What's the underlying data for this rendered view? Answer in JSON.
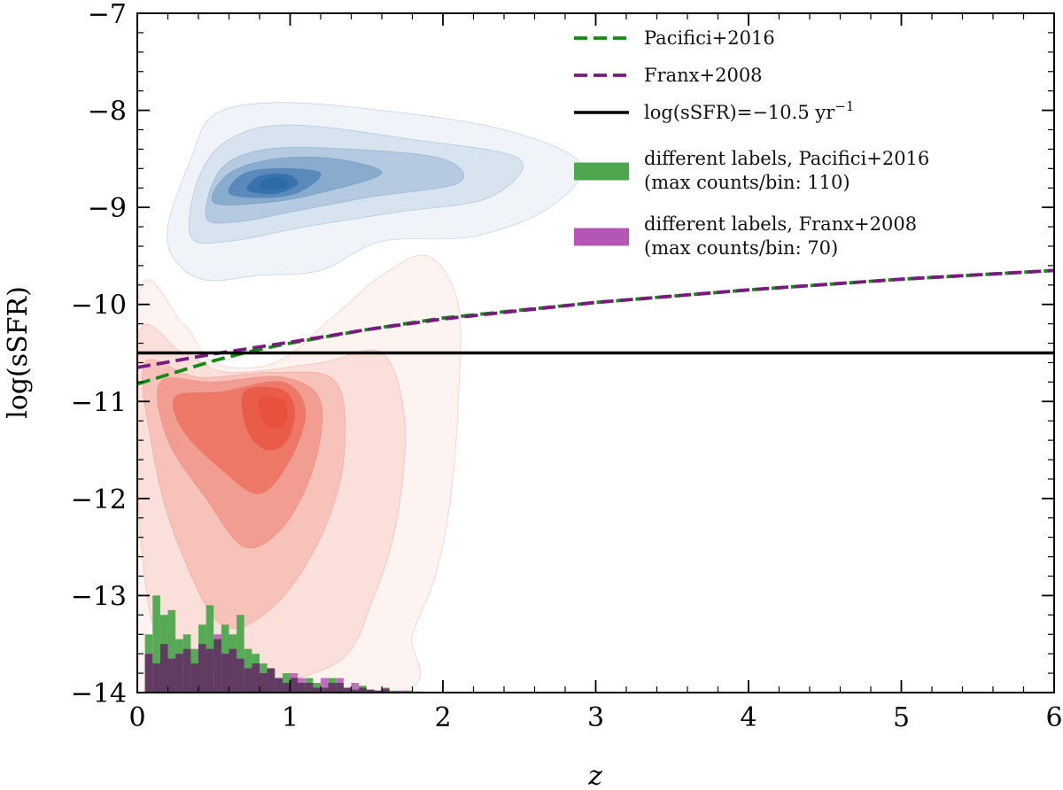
{
  "chart_data": {
    "type": "density-contour-with-histograms",
    "xlabel": "z",
    "ylabel": "log(sSFR)",
    "xlim": [
      0,
      6
    ],
    "ylim": [
      -14,
      -7
    ],
    "x_ticks": [
      0,
      1,
      2,
      3,
      4,
      5,
      6
    ],
    "x_tick_labels": [
      "0",
      "1",
      "2",
      "3",
      "4",
      "5",
      "6"
    ],
    "y_ticks": [
      -14,
      -13,
      -12,
      -11,
      -10,
      -9,
      -8,
      -7
    ],
    "y_tick_labels": [
      "−14",
      "−13",
      "−12",
      "−11",
      "−10",
      "−9",
      "−8",
      "−7"
    ],
    "colors": {
      "pacifici": "#138a13",
      "franx": "#7a1a80",
      "threshold": "#000000",
      "hist_green": "#4ea64e",
      "hist_purple": "#b457b4",
      "hist_overlap": "#5c3a5e",
      "star_forming": "#2b6aa8",
      "quiescent": "#e8503a"
    },
    "series": [
      {
        "name": "Pacifici+2016",
        "kind": "dashed-line",
        "x": [
          0,
          0.25,
          0.5,
          0.75,
          1,
          1.5,
          2,
          3,
          4,
          5,
          6
        ],
        "y": [
          -10.82,
          -10.7,
          -10.58,
          -10.48,
          -10.4,
          -10.26,
          -10.14,
          -9.98,
          -9.85,
          -9.74,
          -9.65
        ]
      },
      {
        "name": "Franx+2008",
        "kind": "dashed-line",
        "x": [
          0,
          0.25,
          0.5,
          0.75,
          1,
          1.5,
          2,
          3,
          4,
          5,
          6
        ],
        "y": [
          -10.65,
          -10.58,
          -10.51,
          -10.45,
          -10.39,
          -10.26,
          -10.15,
          -9.98,
          -9.85,
          -9.74,
          -9.65
        ]
      },
      {
        "name": "log(sSFR)=−10.5 yr−1",
        "kind": "horizontal-line",
        "y": -10.5
      }
    ],
    "histograms": [
      {
        "name": "different labels, Pacifici+2016",
        "note": "(max counts/bin: 110)",
        "bin_width": 0.05,
        "baseline": -14,
        "bin_starts": [
          0.05,
          0.1,
          0.15,
          0.2,
          0.25,
          0.3,
          0.35,
          0.4,
          0.45,
          0.5,
          0.55,
          0.6,
          0.65,
          0.7,
          0.75,
          0.8,
          0.85,
          0.9,
          0.95,
          1.0,
          1.05,
          1.1,
          1.15,
          1.2,
          1.25,
          1.3,
          1.35,
          1.4,
          1.45,
          1.5,
          1.55,
          1.6,
          1.65,
          1.7,
          1.75,
          1.8,
          1.85,
          1.9
        ],
        "tops": [
          -13.4,
          -13.0,
          -13.2,
          -13.15,
          -13.45,
          -13.4,
          -13.55,
          -13.3,
          -13.1,
          -13.45,
          -13.3,
          -13.4,
          -13.2,
          -13.55,
          -13.6,
          -13.7,
          -13.75,
          -13.85,
          -13.8,
          -13.85,
          -13.9,
          -13.85,
          -13.9,
          -13.95,
          -13.85,
          -13.9,
          -13.95,
          -13.97,
          -13.93,
          -13.97,
          -13.98,
          -13.95,
          -13.98,
          -13.99,
          -13.98,
          -13.99,
          -13.99,
          -13.995
        ]
      },
      {
        "name": "different labels, Franx+2008",
        "note": "(max counts/bin: 70)",
        "bin_width": 0.05,
        "baseline": -14,
        "bin_starts": [
          0.05,
          0.1,
          0.15,
          0.2,
          0.25,
          0.3,
          0.35,
          0.4,
          0.45,
          0.5,
          0.55,
          0.6,
          0.65,
          0.7,
          0.75,
          0.8,
          0.85,
          0.9,
          0.95,
          1.0,
          1.05,
          1.1,
          1.15,
          1.2,
          1.25,
          1.3,
          1.35,
          1.4,
          1.45,
          1.5,
          1.55,
          1.6,
          1.65,
          1.7,
          1.75,
          1.8,
          1.85,
          1.9
        ],
        "tops": [
          -13.6,
          -13.7,
          -13.5,
          -13.65,
          -13.6,
          -13.55,
          -13.7,
          -13.5,
          -13.55,
          -13.4,
          -13.6,
          -13.55,
          -13.65,
          -13.75,
          -13.7,
          -13.8,
          -13.75,
          -13.85,
          -13.9,
          -13.8,
          -13.85,
          -13.9,
          -13.95,
          -13.85,
          -13.9,
          -13.85,
          -13.95,
          -13.9,
          -13.95,
          -13.97,
          -13.98,
          -13.96,
          -13.99,
          -13.98,
          -13.99,
          -13.99,
          -13.995,
          -13.995
        ]
      }
    ],
    "density_regions": [
      {
        "name": "star-forming",
        "peak": {
          "x": 0.9,
          "y": -8.75
        },
        "levels": [
          {
            "opacity": 0.07,
            "points": [
              [
                0.25,
                -9.55
              ],
              [
                0.2,
                -9.2
              ],
              [
                0.35,
                -8.5
              ],
              [
                0.5,
                -8.05
              ],
              [
                0.9,
                -7.92
              ],
              [
                1.6,
                -8.0
              ],
              [
                2.4,
                -8.2
              ],
              [
                2.9,
                -8.55
              ],
              [
                2.7,
                -9.0
              ],
              [
                2.2,
                -9.3
              ],
              [
                1.6,
                -9.35
              ],
              [
                1.2,
                -9.65
              ],
              [
                0.8,
                -9.7
              ],
              [
                0.45,
                -9.75
              ]
            ]
          },
          {
            "opacity": 0.12,
            "points": [
              [
                0.35,
                -9.3
              ],
              [
                0.4,
                -8.7
              ],
              [
                0.6,
                -8.3
              ],
              [
                1.0,
                -8.15
              ],
              [
                1.8,
                -8.3
              ],
              [
                2.5,
                -8.5
              ],
              [
                2.3,
                -8.9
              ],
              [
                1.7,
                -9.05
              ],
              [
                1.1,
                -9.2
              ],
              [
                0.6,
                -9.35
              ]
            ]
          },
          {
            "opacity": 0.2,
            "points": [
              [
                0.45,
                -9.1
              ],
              [
                0.55,
                -8.6
              ],
              [
                0.85,
                -8.4
              ],
              [
                1.4,
                -8.4
              ],
              [
                2.0,
                -8.5
              ],
              [
                2.1,
                -8.75
              ],
              [
                1.5,
                -8.9
              ],
              [
                1.0,
                -9.05
              ],
              [
                0.65,
                -9.15
              ]
            ]
          },
          {
            "opacity": 0.32,
            "points": [
              [
                0.5,
                -8.95
              ],
              [
                0.6,
                -8.65
              ],
              [
                0.9,
                -8.5
              ],
              [
                1.3,
                -8.5
              ],
              [
                1.6,
                -8.65
              ],
              [
                1.2,
                -8.85
              ],
              [
                0.85,
                -8.95
              ]
            ]
          },
          {
            "opacity": 0.5,
            "points": [
              [
                0.6,
                -8.85
              ],
              [
                0.7,
                -8.65
              ],
              [
                0.95,
                -8.6
              ],
              [
                1.2,
                -8.65
              ],
              [
                1.05,
                -8.85
              ],
              [
                0.8,
                -8.9
              ]
            ]
          },
          {
            "opacity": 0.7,
            "points": [
              [
                0.72,
                -8.82
              ],
              [
                0.8,
                -8.68
              ],
              [
                0.98,
                -8.66
              ],
              [
                1.05,
                -8.76
              ],
              [
                0.9,
                -8.86
              ]
            ]
          },
          {
            "opacity": 0.95,
            "points": [
              [
                0.8,
                -8.8
              ],
              [
                0.85,
                -8.7
              ],
              [
                0.96,
                -8.7
              ],
              [
                0.98,
                -8.78
              ],
              [
                0.88,
                -8.82
              ]
            ]
          }
        ]
      },
      {
        "name": "quiescent",
        "peak": {
          "x": 0.9,
          "y": -11.1
        },
        "levels": [
          {
            "opacity": 0.07,
            "points": [
              [
                0.0,
                -10.0
              ],
              [
                0.3,
                -10.2
              ],
              [
                0.5,
                -10.6
              ],
              [
                0.9,
                -10.6
              ],
              [
                1.3,
                -10.1
              ],
              [
                1.6,
                -9.7
              ],
              [
                1.9,
                -9.5
              ],
              [
                2.1,
                -10.0
              ],
              [
                2.1,
                -11.0
              ],
              [
                2.05,
                -12.0
              ],
              [
                1.95,
                -12.8
              ],
              [
                1.8,
                -13.4
              ],
              [
                1.7,
                -14.0
              ],
              [
                0.0,
                -14.0
              ]
            ]
          },
          {
            "opacity": 0.12,
            "points": [
              [
                0.0,
                -10.4
              ],
              [
                0.3,
                -10.5
              ],
              [
                0.6,
                -10.7
              ],
              [
                1.2,
                -10.6
              ],
              [
                1.6,
                -10.5
              ],
              [
                1.75,
                -11.2
              ],
              [
                1.7,
                -12.2
              ],
              [
                1.55,
                -13.0
              ],
              [
                1.3,
                -13.7
              ],
              [
                0.6,
                -13.9
              ],
              [
                0.1,
                -13.3
              ]
            ]
          },
          {
            "opacity": 0.2,
            "points": [
              [
                0.05,
                -10.6
              ],
              [
                0.4,
                -10.75
              ],
              [
                0.9,
                -10.7
              ],
              [
                1.3,
                -10.8
              ],
              [
                1.35,
                -11.6
              ],
              [
                1.2,
                -12.4
              ],
              [
                0.9,
                -13.1
              ],
              [
                0.55,
                -13.3
              ],
              [
                0.25,
                -12.4
              ],
              [
                0.1,
                -11.5
              ]
            ]
          },
          {
            "opacity": 0.32,
            "points": [
              [
                0.15,
                -10.8
              ],
              [
                0.5,
                -10.8
              ],
              [
                0.95,
                -10.75
              ],
              [
                1.2,
                -11.0
              ],
              [
                1.15,
                -11.7
              ],
              [
                0.95,
                -12.3
              ],
              [
                0.7,
                -12.5
              ],
              [
                0.45,
                -12.0
              ],
              [
                0.2,
                -11.4
              ]
            ]
          },
          {
            "opacity": 0.48,
            "points": [
              [
                0.25,
                -10.95
              ],
              [
                0.55,
                -10.9
              ],
              [
                0.95,
                -10.8
              ],
              [
                1.1,
                -11.1
              ],
              [
                1.0,
                -11.6
              ],
              [
                0.8,
                -11.95
              ],
              [
                0.55,
                -11.7
              ],
              [
                0.3,
                -11.3
              ]
            ]
          },
          {
            "opacity": 0.68,
            "points": [
              [
                0.7,
                -10.9
              ],
              [
                0.95,
                -10.88
              ],
              [
                1.03,
                -11.1
              ],
              [
                0.98,
                -11.4
              ],
              [
                0.85,
                -11.5
              ],
              [
                0.72,
                -11.3
              ]
            ]
          },
          {
            "opacity": 0.9,
            "points": [
              [
                0.8,
                -10.98
              ],
              [
                0.95,
                -10.98
              ],
              [
                0.98,
                -11.15
              ],
              [
                0.92,
                -11.28
              ],
              [
                0.83,
                -11.22
              ]
            ]
          }
        ]
      }
    ],
    "legend": {
      "position": "top-right",
      "entries": [
        {
          "label": "Pacifici+2016",
          "style": "dashed",
          "color": "#138a13"
        },
        {
          "label": "Franx+2008",
          "style": "dashed",
          "color": "#7a1a80"
        },
        {
          "label": "log(sSFR)=−10.5 yr",
          "superscript": "−1",
          "style": "solid",
          "color": "#000000"
        },
        {
          "label": "different labels, Pacifici+2016",
          "label2": "(max counts/bin: 110)",
          "style": "patch",
          "color": "#4ea64e"
        },
        {
          "label": "different labels, Franx+2008",
          "label2": "(max counts/bin: 70)",
          "style": "patch",
          "color": "#b457b4"
        }
      ]
    }
  }
}
